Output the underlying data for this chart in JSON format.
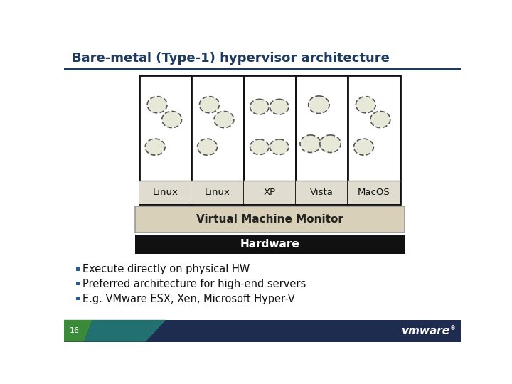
{
  "title": "Bare-metal (Type-1) hypervisor architecture",
  "title_color": "#1e3a5f",
  "title_fontsize": 13,
  "bg_color": "#ffffff",
  "vm_labels": [
    "Linux",
    "Linux",
    "XP",
    "Vista",
    "MacOS"
  ],
  "vmm_label": "Virtual Machine Monitor",
  "hw_label": "Hardware",
  "bullets": [
    "Execute directly on physical HW",
    "Preferred architecture for high-end servers",
    "E.g. VMware ESX, Xen, Microsoft Hyper-V"
  ],
  "bullet_color": "#2a5b8c",
  "page_num": "16",
  "footer_dark": "#1e2d4f",
  "footer_green": "#3a8a3a",
  "footer_teal": "#237070",
  "line_color": "#1e3a5f",
  "vmm_fill": "#d8d0b8",
  "vmm_border": "#999999",
  "hw_fill": "#111111",
  "box_border": "#111111",
  "box_fill": "#ffffff",
  "label_fill": "#e0ddd0",
  "ellipse_fill": "#e8e8d8",
  "ellipse_edge": "#555555"
}
